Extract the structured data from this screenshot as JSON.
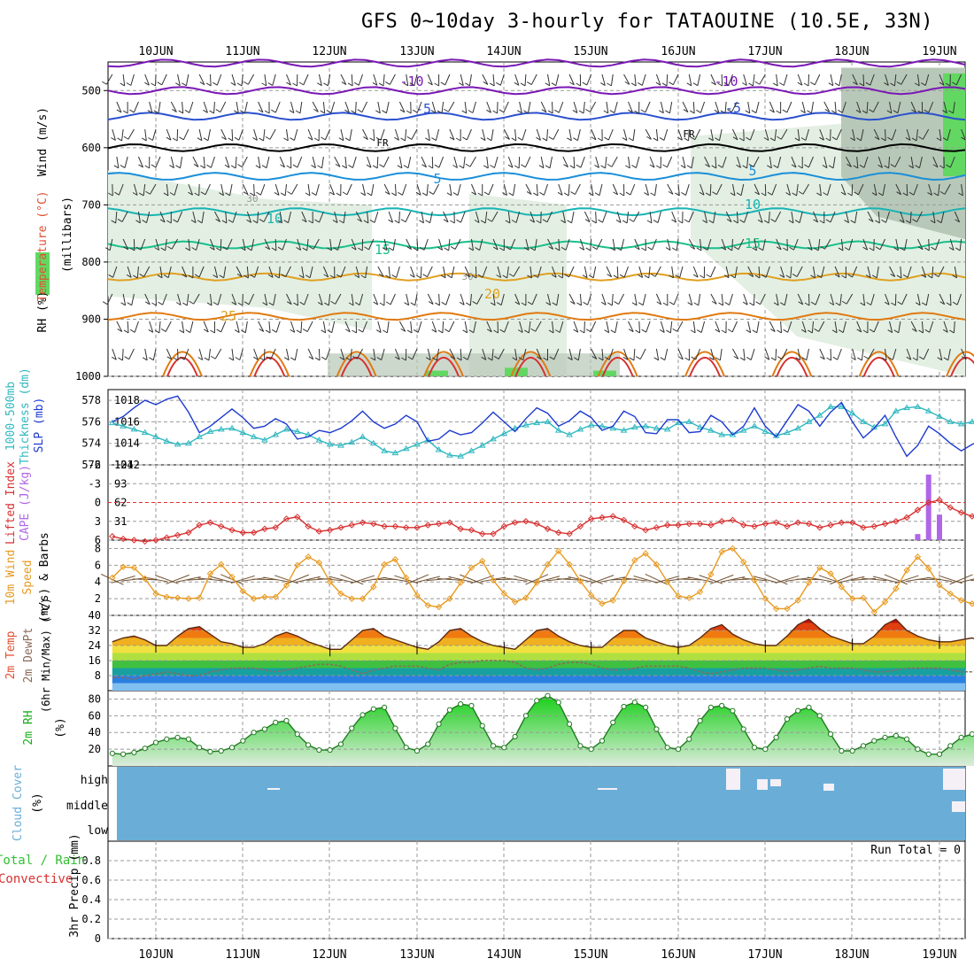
{
  "title": "GFS 0~10day 3-hourly for TATAOUINE (10.5E, 33N)",
  "days": [
    "10JUN",
    "11JUN",
    "12JUN",
    "13JUN",
    "14JUN",
    "15JUN",
    "16JUN",
    "17JUN",
    "18JUN",
    "19JUN"
  ],
  "panels": {
    "upper": {
      "ylabels": [
        "RH (%)",
        "Temperature (°C)",
        "Wind (m/s)",
        "(millibars)"
      ],
      "levels": [
        "500",
        "600",
        "700",
        "800",
        "900",
        "1000"
      ],
      "contour_labels": [
        "-10",
        "-10",
        "-5",
        "-5",
        "FR",
        "FR",
        "5",
        "5",
        "10",
        "10",
        "15",
        "15",
        "20",
        "30",
        "30",
        "25"
      ],
      "colors": {
        "rh_light": "#e3efe3",
        "rh_mid": "#b8c8b8",
        "rh_dark": "#7f977f",
        "rh_green": "#62d862"
      }
    },
    "slp": {
      "ylabels": [
        "1000-500mb",
        "Thickness (dm)",
        "SLP (mb)"
      ],
      "left_ticks": [
        "578",
        "576",
        "574",
        "572"
      ],
      "right_ticks": [
        "1018",
        "1016",
        "1014",
        "1012"
      ]
    },
    "cape": {
      "ylabels": [
        "Lifted Index",
        "CAPE (J/kg)"
      ],
      "left_ticks": [
        "-6",
        "-3",
        "0",
        "3",
        "6"
      ],
      "right_ticks": [
        "124",
        "93",
        "62",
        "31"
      ]
    },
    "wind10m": {
      "ylabels": [
        "10m Wind",
        "Speed",
        "(m/s) & Barbs"
      ],
      "ticks": [
        "8",
        "6",
        "4",
        "2"
      ]
    },
    "temp2m": {
      "ylabels": [
        "2m Temp",
        "2m DewPt",
        "(6hr Min/Max) (°C)"
      ],
      "ticks": [
        "40",
        "32",
        "24",
        "16",
        "8"
      ]
    },
    "rh2m": {
      "ylabels": [
        "2m RH",
        "(%)"
      ],
      "ticks": [
        "80",
        "60",
        "40",
        "20"
      ]
    },
    "cloud": {
      "ylabels": [
        "Cloud Cover",
        "(%)"
      ],
      "ticks": [
        "high",
        "middle",
        "low"
      ],
      "color": "#6aaed8"
    },
    "precip": {
      "ylabels": [
        "Total / Rain",
        "Convective",
        "3hr Precip (mm)"
      ],
      "ticks": [
        "0.8",
        "0.6",
        "0.4",
        "0.2",
        "0"
      ],
      "run_total": "Run Total = 0"
    }
  },
  "chart_data": {
    "type": "line",
    "x": [
      "09JUN 12Z",
      "09JUN 15Z",
      "09JUN 18Z",
      "09JUN 21Z",
      "10JUN 00Z",
      "10JUN 03Z",
      "10JUN 06Z",
      "10JUN 09Z",
      "10JUN 12Z",
      "10JUN 15Z",
      "10JUN 18Z",
      "10JUN 21Z",
      "11JUN 00Z",
      "11JUN 03Z",
      "11JUN 06Z",
      "11JUN 09Z",
      "11JUN 12Z",
      "11JUN 15Z",
      "11JUN 18Z",
      "11JUN 21Z",
      "12JUN 00Z",
      "12JUN 03Z",
      "12JUN 06Z",
      "12JUN 09Z",
      "12JUN 12Z",
      "12JUN 15Z",
      "12JUN 18Z",
      "12JUN 21Z",
      "13JUN 00Z",
      "13JUN 03Z",
      "13JUN 06Z",
      "13JUN 09Z",
      "13JUN 12Z",
      "13JUN 15Z",
      "13JUN 18Z",
      "13JUN 21Z",
      "14JUN 00Z",
      "14JUN 03Z",
      "14JUN 06Z",
      "14JUN 09Z",
      "14JUN 12Z",
      "14JUN 15Z",
      "14JUN 18Z",
      "14JUN 21Z",
      "15JUN 00Z",
      "15JUN 03Z",
      "15JUN 06Z",
      "15JUN 09Z",
      "15JUN 12Z",
      "15JUN 15Z",
      "15JUN 18Z",
      "15JUN 21Z",
      "16JUN 00Z",
      "16JUN 03Z",
      "16JUN 06Z",
      "16JUN 09Z",
      "16JUN 12Z",
      "16JUN 15Z",
      "16JUN 18Z",
      "16JUN 21Z",
      "17JUN 00Z",
      "17JUN 03Z",
      "17JUN 06Z",
      "17JUN 09Z",
      "17JUN 12Z",
      "17JUN 15Z",
      "17JUN 18Z",
      "17JUN 21Z",
      "18JUN 00Z",
      "18JUN 03Z",
      "18JUN 06Z",
      "18JUN 09Z",
      "18JUN 12Z",
      "18JUN 15Z",
      "18JUN 18Z",
      "18JUN 21Z",
      "19JUN 00Z",
      "19JUN 03Z",
      "19JUN 06Z",
      "19JUN 09Z",
      "19JUN 12Z"
    ],
    "series": [
      {
        "panel": "slp",
        "values": [
          1016.0,
          1016.5,
          1017.3,
          1018.0,
          1017.6,
          1018.1,
          1018.4,
          1016.9,
          1015.0,
          1015.6,
          1016.4,
          1017.2,
          1016.4,
          1015.4,
          1015.6,
          1016.3,
          1015.8,
          1014.4,
          1014.6,
          1015.2,
          1015.0,
          1015.4,
          1016.1,
          1017.0,
          1016.0,
          1015.4,
          1015.8,
          1016.6,
          1016.0,
          1014.2,
          1014.4,
          1015.2,
          1014.8,
          1015.0,
          1015.9,
          1016.9,
          1016.0,
          1015.1,
          1016.3,
          1017.3,
          1016.8,
          1015.6,
          1016.1,
          1017.0,
          1016.4,
          1015.2,
          1015.6,
          1017.0,
          1016.5,
          1015.0,
          1014.9,
          1016.2,
          1016.2,
          1015.0,
          1015.1,
          1016.6,
          1016.0,
          1014.8,
          1015.6,
          1017.3,
          1015.6,
          1014.6,
          1016.1,
          1017.6,
          1017.0,
          1015.6,
          1016.9,
          1017.8,
          1016.0,
          1014.5,
          1015.4,
          1016.6,
          1014.6,
          1012.8,
          1013.8,
          1015.6,
          1014.9,
          1014.0,
          1013.3,
          1013.9,
          1014.4
        ]
      },
      {
        "panel": "thickness",
        "values": [
          575.9,
          575.6,
          575.3,
          575.0,
          574.6,
          574.2,
          573.9,
          574.0,
          574.6,
          575.1,
          575.3,
          575.4,
          575.0,
          574.6,
          574.3,
          574.8,
          575.3,
          575.1,
          574.8,
          574.3,
          573.9,
          573.8,
          574.1,
          574.6,
          574.0,
          573.3,
          573.1,
          573.5,
          573.9,
          574.3,
          573.4,
          572.9,
          572.8,
          573.3,
          573.8,
          574.4,
          574.9,
          575.4,
          575.7,
          575.9,
          576.0,
          575.2,
          574.8,
          575.3,
          575.7,
          575.6,
          575.4,
          575.2,
          575.5,
          575.6,
          575.4,
          575.3,
          575.9,
          576.0,
          575.5,
          575.2,
          574.8,
          574.8,
          575.2,
          575.6,
          575.1,
          574.7,
          575.0,
          575.4,
          576.0,
          576.6,
          577.4,
          577.4,
          576.8,
          576.0,
          575.5,
          575.8,
          577.0,
          577.3,
          577.4,
          577.0,
          576.5,
          576.0,
          575.8,
          576.0,
          575.8
        ]
      },
      {
        "panel": "lifted_index",
        "values": [
          5.4,
          5.8,
          6.0,
          6.2,
          6.0,
          5.6,
          5.2,
          4.8,
          3.6,
          3.2,
          3.8,
          4.4,
          4.8,
          4.8,
          4.2,
          4.0,
          2.6,
          2.3,
          3.8,
          4.6,
          4.4,
          4.0,
          3.6,
          3.2,
          3.4,
          3.8,
          3.8,
          4.0,
          4.0,
          3.6,
          3.4,
          3.2,
          4.2,
          4.4,
          5.0,
          5.0,
          3.8,
          3.2,
          3.0,
          3.4,
          4.2,
          4.8,
          5.0,
          3.8,
          2.6,
          2.4,
          2.2,
          2.8,
          3.8,
          4.4,
          4.0,
          3.6,
          3.6,
          3.4,
          3.4,
          3.6,
          3.0,
          2.8,
          3.6,
          3.8,
          3.4,
          3.2,
          3.8,
          3.2,
          3.4,
          4.0,
          3.6,
          3.2,
          3.2,
          4.0,
          3.8,
          3.4,
          3.0,
          2.4,
          1.2,
          0.0,
          -0.4,
          0.8,
          1.6,
          2.2,
          2.0
        ]
      },
      {
        "panel": "wind10m",
        "values": [
          4.5,
          5.8,
          5.7,
          4.4,
          2.6,
          2.2,
          2.1,
          2.0,
          2.1,
          5.0,
          6.1,
          4.6,
          2.9,
          2.0,
          2.2,
          2.2,
          3.6,
          6.0,
          7.0,
          6.3,
          4.0,
          2.6,
          2.0,
          2.0,
          3.4,
          6.1,
          6.7,
          4.5,
          2.4,
          1.2,
          1.0,
          2.0,
          3.9,
          5.7,
          6.5,
          4.2,
          2.6,
          1.6,
          2.1,
          3.9,
          6.1,
          7.7,
          6.1,
          4.1,
          2.4,
          1.4,
          1.8,
          4.1,
          6.6,
          7.4,
          6.1,
          4.0,
          2.3,
          2.1,
          2.8,
          4.9,
          7.6,
          8.0,
          6.4,
          4.2,
          2.0,
          0.8,
          0.8,
          1.8,
          3.9,
          5.7,
          5.0,
          3.4,
          2.0,
          2.1,
          0.4,
          1.6,
          3.2,
          5.4,
          7.0,
          5.6,
          3.6,
          2.6,
          1.8,
          1.4,
          1.6
        ]
      },
      {
        "panel": "temp2m",
        "values": [
          26,
          28,
          29,
          27,
          24,
          24,
          29,
          33,
          34,
          30,
          26,
          25,
          23,
          23,
          25,
          29,
          31,
          29,
          26,
          24,
          22,
          22,
          27,
          32,
          33,
          29,
          27,
          25,
          23,
          22,
          26,
          32,
          33,
          29,
          26,
          24,
          23,
          22,
          27,
          32,
          33,
          29,
          26,
          24,
          23,
          23,
          28,
          32,
          32,
          28,
          26,
          24,
          23,
          24,
          28,
          33,
          35,
          30,
          27,
          25,
          24,
          24,
          29,
          35,
          38,
          33,
          29,
          27,
          25,
          25,
          29,
          35,
          38,
          32,
          29,
          27,
          26,
          26,
          27,
          28,
          26
        ]
      },
      {
        "panel": "dewpt2m",
        "values": [
          7,
          7,
          6,
          8,
          9,
          10,
          9,
          8,
          8,
          10,
          11,
          12,
          12,
          12,
          11,
          10,
          11,
          12,
          13,
          14,
          14,
          13,
          11,
          9,
          11,
          12,
          13,
          13,
          13,
          12,
          11,
          14,
          15,
          15,
          16,
          16,
          16,
          15,
          12,
          11,
          12,
          14,
          15,
          15,
          14,
          12,
          11,
          11,
          12,
          13,
          13,
          13,
          13,
          12,
          10,
          9,
          10,
          11,
          12,
          12,
          12,
          11,
          10,
          11,
          12,
          13,
          12,
          12,
          12,
          11,
          10,
          10,
          11,
          12,
          12,
          12,
          12,
          11,
          10,
          10,
          11
        ]
      },
      {
        "panel": "rh2m",
        "values": [
          15,
          14,
          16,
          21,
          28,
          32,
          34,
          32,
          22,
          17,
          18,
          22,
          30,
          40,
          44,
          52,
          54,
          38,
          25,
          19,
          19,
          26,
          45,
          61,
          68,
          70,
          45,
          22,
          18,
          26,
          50,
          67,
          74,
          72,
          48,
          24,
          22,
          35,
          60,
          78,
          84,
          76,
          50,
          24,
          20,
          30,
          52,
          71,
          76,
          70,
          44,
          22,
          20,
          32,
          54,
          70,
          72,
          66,
          44,
          22,
          20,
          34,
          56,
          66,
          70,
          60,
          38,
          18,
          18,
          24,
          30,
          34,
          36,
          32,
          20,
          14,
          14,
          24,
          34,
          38,
          36
        ]
      },
      {
        "panel": "cape",
        "values": [
          0,
          0,
          0,
          0,
          0,
          0,
          0,
          0,
          0,
          0,
          0,
          0,
          0,
          0,
          0,
          0,
          0,
          0,
          0,
          0,
          0,
          0,
          0,
          0,
          0,
          0,
          0,
          0,
          0,
          0,
          0,
          0,
          0,
          0,
          0,
          0,
          0,
          0,
          0,
          0,
          0,
          0,
          0,
          0,
          0,
          0,
          0,
          0,
          0,
          0,
          0,
          0,
          0,
          0,
          0,
          0,
          0,
          0,
          0,
          0,
          0,
          0,
          0,
          0,
          0,
          0,
          0,
          0,
          0,
          0,
          0,
          0,
          0,
          0,
          10,
          108,
          42,
          0,
          0,
          0,
          0
        ]
      },
      {
        "panel": "precip",
        "values": [
          0,
          0,
          0,
          0,
          0,
          0,
          0,
          0,
          0,
          0,
          0,
          0,
          0,
          0,
          0,
          0,
          0,
          0,
          0,
          0,
          0,
          0,
          0,
          0,
          0,
          0,
          0,
          0,
          0,
          0,
          0,
          0,
          0,
          0,
          0,
          0,
          0,
          0,
          0,
          0,
          0,
          0,
          0,
          0,
          0,
          0,
          0,
          0,
          0,
          0,
          0,
          0,
          0,
          0,
          0,
          0,
          0,
          0,
          0,
          0,
          0,
          0,
          0,
          0,
          0,
          0,
          0,
          0,
          0,
          0,
          0,
          0,
          0,
          0,
          0,
          0,
          0,
          0,
          0,
          0,
          0
        ]
      }
    ],
    "ylim": {
      "slp": [
        1012,
        1019
      ],
      "thickness": [
        572,
        579
      ],
      "lifted_index": [
        6,
        -6
      ],
      "cape": [
        0,
        124
      ],
      "wind10m": [
        0,
        9
      ],
      "temp2m": [
        0,
        40
      ],
      "rh2m": [
        0,
        90
      ],
      "precip": [
        0,
        1
      ]
    },
    "grid": true
  }
}
